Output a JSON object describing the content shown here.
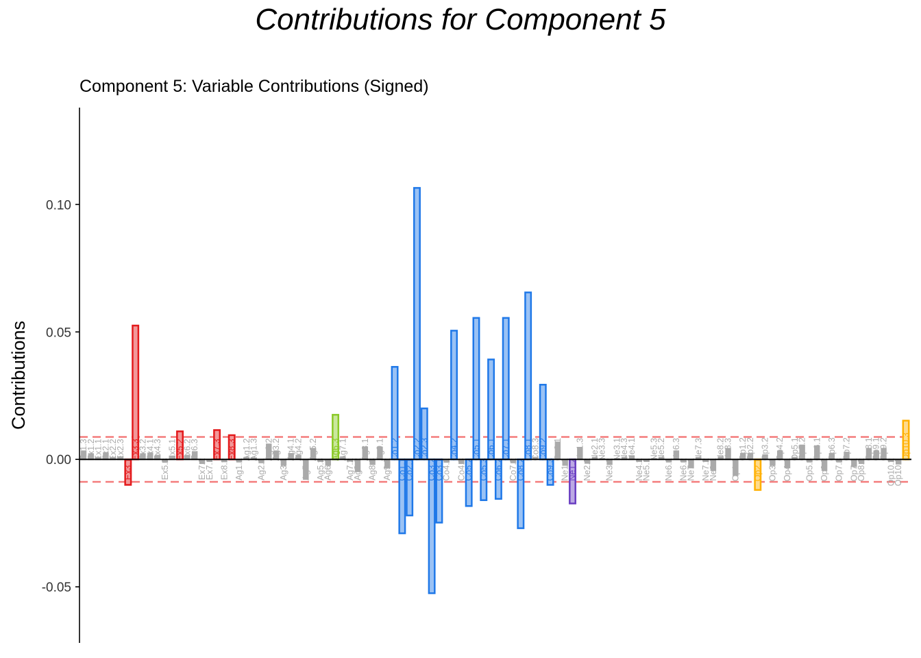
{
  "page_title": "Contributions for Component 5",
  "chart_data": {
    "type": "bar",
    "title": "Contributions for Component 5",
    "subtitle": "Component 5: Variable Contributions (Signed)",
    "xlabel": "",
    "ylabel": "Contributions",
    "ylim": [
      -0.072,
      0.138
    ],
    "yticks": [
      -0.05,
      0.0,
      0.05,
      0.1
    ],
    "ytick_labels": [
      "-0.05",
      "0.00",
      "0.05",
      "0.10"
    ],
    "threshold": 0.0088,
    "grid": false,
    "legend": "none",
    "colors": {
      "Ex": "#e31a1c",
      "Ag": "#8ac926",
      "Co": "#1f78e8",
      "Ne": "#6a3fc2",
      "Op": "#ffb000",
      "insignificant": "#aaaaaa",
      "threshold": "#f47b7b"
    },
    "categories": [
      "Ex1.3",
      "Ex1.2",
      "Ex1.1",
      "Ex2.1",
      "Ex2.2",
      "Ex2.3",
      "Ex3.1",
      "Ex3.3",
      "Ex3.2",
      "Ex4.1",
      "Ex4.3",
      "Ex5.3",
      "Ex5.1",
      "Ex5.2",
      "Ex6.2",
      "Ex6.3",
      "Ex7.2",
      "Ex7.1",
      "Ex7.3",
      "Ex8.2",
      "Ex8.3",
      "Ag1.1",
      "Ag1.2",
      "Ag1.3",
      "Ag2.1",
      "Ag2.2",
      "Ag3.2",
      "Ag3.1",
      "Ag4.1",
      "Ag4.2",
      "Ag5.1",
      "Ag5.2",
      "Ag5.3",
      "Ag6.1",
      "Ag6.3",
      "Ag7.1",
      "Ag7.2",
      "Ag8.2",
      "Ag8.1",
      "Ag8.3",
      "Ag9.1",
      "Ag9.2",
      "Co1.2",
      "Co1.1",
      "Co2.1",
      "Co2.2",
      "Co2.3",
      "Co3.2",
      "Co3.1",
      "Co4.1",
      "Co4.2",
      "Co4.3",
      "Co5.2",
      "Co5.1",
      "Co5.3",
      "Co6.1",
      "Co6.2",
      "Co7.1",
      "Co7.2",
      "Co8.2",
      "Co8.1",
      "Co8.3",
      "Co9.2",
      "Co9.3",
      "Co9.1",
      "Ne1.1",
      "Ne1.2",
      "Ne1.3",
      "Ne2.2",
      "Ne2.1",
      "Ne3.3",
      "Ne3.2",
      "Ne3.1",
      "Ne4.3",
      "Ne4.1",
      "Ne4.2",
      "Ne5.1",
      "Ne5.3",
      "Ne5.2",
      "Ne6.1",
      "Ne6.3",
      "Ne6.2",
      "Ne7.1",
      "Ne7.3",
      "Ne7.2",
      "Ne8.1",
      "Ne8.2",
      "Ne8.3",
      "Op1.1",
      "Op1.2",
      "Op2.2",
      "Op2.1",
      "Op3.2",
      "Op3.1",
      "Op4.2",
      "Op4.1",
      "Op5.1",
      "Op5.2",
      "Op5.3",
      "Op6.1",
      "Op6.2",
      "Op6.3",
      "Op7.3",
      "Op7.2",
      "Op7.1",
      "Op8.2",
      "Op8.1",
      "Op9.1",
      "Op9.2",
      "Op10.2",
      "Op10.1",
      "Op10.3"
    ],
    "values": [
      0.0035,
      0.0024,
      0.001,
      0.0028,
      0.001,
      0.0012,
      -0.01,
      0.0525,
      0.0024,
      0.0027,
      0.0018,
      -0.0013,
      0.0015,
      0.011,
      0.0018,
      0.0032,
      -0.0018,
      -0.001,
      0.0115,
      -0.0011,
      0.0095,
      -0.0012,
      0.001,
      0.0008,
      -0.0015,
      0.0062,
      0.0035,
      -0.0025,
      0.0025,
      0.0018,
      -0.008,
      0.0045,
      -0.001,
      -0.0025,
      0.0175,
      0.0012,
      -0.0009,
      -0.005,
      0.005,
      -0.0022,
      0.005,
      -0.0035,
      0.0363,
      -0.029,
      -0.022,
      0.1065,
      0.02,
      -0.0525,
      -0.0248,
      -0.0013,
      0.0505,
      -0.0018,
      -0.0183,
      0.0555,
      -0.016,
      0.0392,
      -0.0155,
      0.0555,
      -0.0015,
      -0.027,
      0.0655,
      0.001,
      0.0293,
      -0.01,
      0.007,
      -0.0025,
      -0.0173,
      0.0048,
      -0.0017,
      0.001,
      0.0005,
      -0.0022,
      0.0005,
      0.001,
      0.0015,
      -0.001,
      -0.001,
      0.0005,
      0.001,
      -0.0012,
      0.0035,
      -0.0012,
      -0.0035,
      0.001,
      -0.001,
      -0.0045,
      0.0012,
      0.0045,
      -0.0065,
      0.0025,
      0.0025,
      -0.012,
      0.002,
      -0.0025,
      0.0035,
      -0.0035,
      0.001,
      0.0058,
      -0.0012,
      0.0055,
      -0.0045,
      0.0025,
      -0.0012,
      0.003,
      -0.003,
      -0.0018,
      0.0045,
      0.0035,
      0.0045,
      -0.001,
      -0.002,
      0.0152
    ]
  }
}
